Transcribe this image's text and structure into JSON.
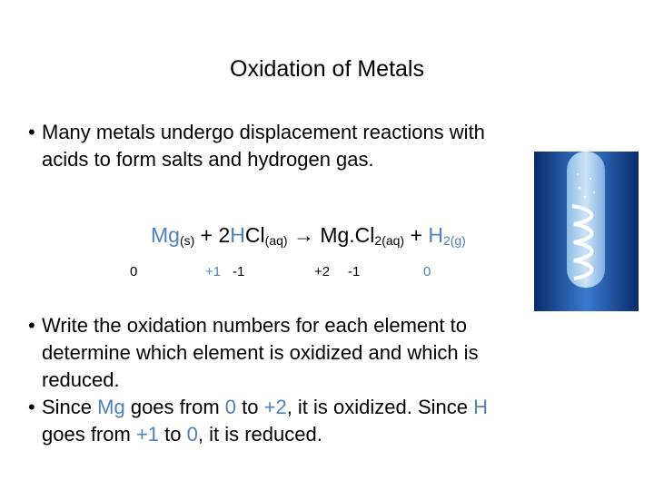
{
  "title": "Oxidation of Metals",
  "bullets": [
    {
      "parts": [
        "Many metals undergo displacement reactions with",
        "acids to form salts and hydrogen gas."
      ]
    },
    {
      "parts": [
        "Write the oxidation numbers for each element to",
        "determine which element is oxidized and which is",
        "reduced."
      ]
    },
    {
      "parts": [
        "Since ",
        "Mg",
        " goes from ",
        "0",
        " to ",
        "+2",
        ", it is oxidized. Since ",
        "H",
        "goes from ",
        "+1",
        " to ",
        "0",
        ", it is reduced."
      ]
    }
  ],
  "equation": {
    "parts": [
      "Mg",
      "(s)",
      " + 2",
      "H",
      "Cl",
      "(aq)",
      "→",
      " Mg.Cl",
      "2(aq)",
      " + ",
      "H",
      "2(g)"
    ]
  },
  "oxidation_numbers": [
    "0",
    "+1",
    "-1",
    "+2",
    "-1",
    "0"
  ]
}
